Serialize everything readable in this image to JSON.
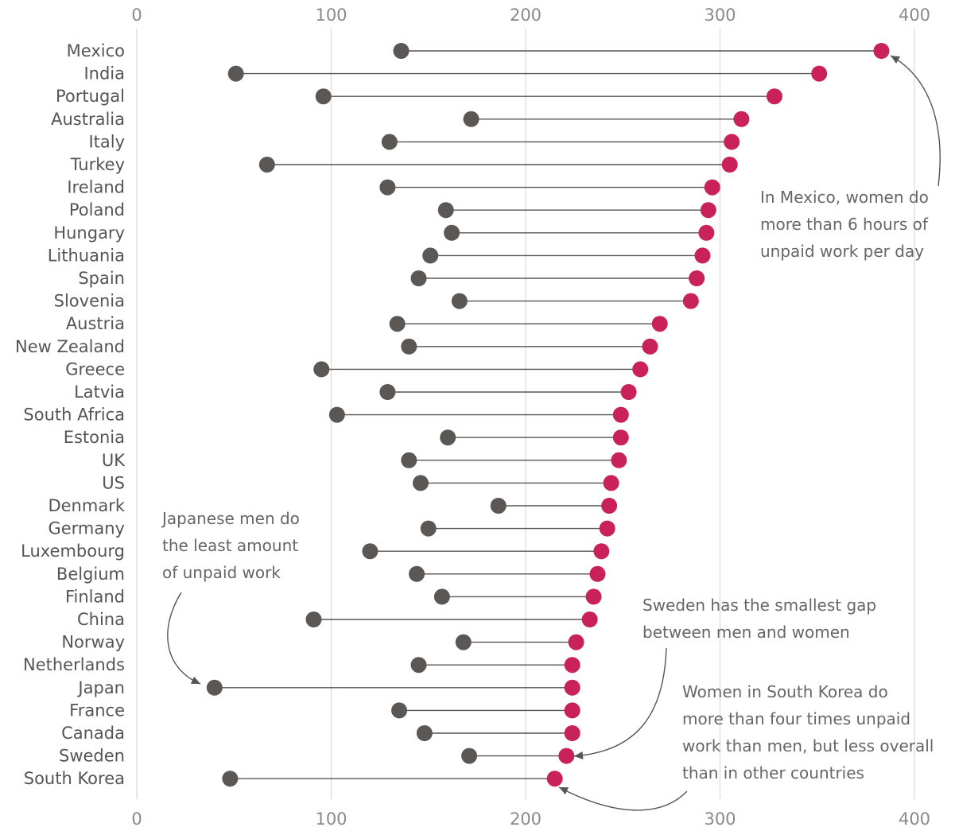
{
  "chart_data": {
    "type": "dumbbell",
    "title": "",
    "xlabel": "",
    "ylabel": "",
    "xlim": [
      0,
      400
    ],
    "ticks": [
      0,
      100,
      200,
      300,
      400
    ],
    "grid": true,
    "colors": {
      "men": "#5b5755",
      "women": "#c9215a"
    },
    "categories": [
      "Mexico",
      "India",
      "Portugal",
      "Australia",
      "Italy",
      "Turkey",
      "Ireland",
      "Poland",
      "Hungary",
      "Lithuania",
      "Spain",
      "Slovenia",
      "Austria",
      "New Zealand",
      "Greece",
      "Latvia",
      "South Africa",
      "Estonia",
      "UK",
      "US",
      "Denmark",
      "Germany",
      "Luxembourg",
      "Belgium",
      "Finland",
      "China",
      "Norway",
      "Netherlands",
      "Japan",
      "France",
      "Canada",
      "Sweden",
      "South Korea"
    ],
    "series": [
      {
        "values": [
          136,
          51,
          96,
          172,
          130,
          67,
          129,
          159,
          162,
          151,
          145,
          166,
          134,
          140,
          95,
          129,
          103,
          160,
          140,
          146,
          186,
          150,
          120,
          144,
          157,
          91,
          168,
          145,
          40,
          135,
          148,
          171,
          48
        ]
      },
      {
        "values": [
          383,
          351,
          328,
          311,
          306,
          305,
          296,
          294,
          293,
          291,
          288,
          285,
          269,
          264,
          259,
          253,
          249,
          249,
          248,
          244,
          243,
          242,
          239,
          237,
          235,
          233,
          226,
          224,
          224,
          224,
          224,
          221,
          215
        ]
      }
    ],
    "annotations": [
      {
        "id": "mexico",
        "lines": [
          "In Mexico, women do",
          "more than 6 hours of",
          "unpaid work per day"
        ]
      },
      {
        "id": "japan",
        "lines": [
          "Japanese men do",
          "the least amount",
          "of unpaid work"
        ]
      },
      {
        "id": "sweden",
        "lines": [
          "Sweden has the smallest gap",
          "between men and women"
        ]
      },
      {
        "id": "korea",
        "lines": [
          "Women in South Korea do",
          "more than four times unpaid",
          "work than men, but less overall",
          "than in other countries"
        ]
      }
    ]
  }
}
